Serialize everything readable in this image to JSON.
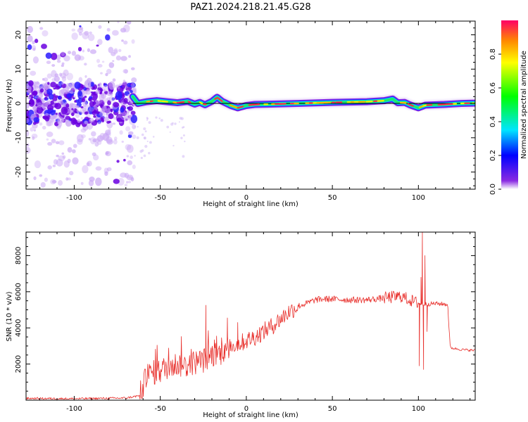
{
  "title": "PAZ1.2024.218.21.45.G28",
  "colors": {
    "snr_line": "#e8302c",
    "band_core": "#e8483c",
    "scatter": "#8a2be2"
  },
  "chart_data": [
    {
      "type": "heatmap",
      "xlabel": "Height of straight line (km)",
      "ylabel": "Frequency (Hz)",
      "xlim": [
        -128,
        133
      ],
      "ylim": [
        -25,
        24
      ],
      "x_ticks": [
        -100,
        -50,
        0,
        50,
        100
      ],
      "y_ticks": [
        -20,
        -10,
        0,
        10,
        20
      ],
      "colorbar": {
        "label": "Normalized spectral amplitude",
        "range": [
          0,
          1
        ],
        "ticks": [
          0.0,
          0.2,
          0.4,
          0.6,
          0.8
        ],
        "tick_labels": [
          "0.0",
          "0.2",
          "0.4",
          "0.6",
          "0.8"
        ],
        "colormap": "gist_rainbow"
      },
      "reference_line_hz": 0,
      "band_center": [
        [
          -66,
          2
        ],
        [
          -63,
          0
        ],
        [
          -58,
          0.5
        ],
        [
          -52,
          0.8
        ],
        [
          -46,
          0.5
        ],
        [
          -40,
          0.2
        ],
        [
          -34,
          0.6
        ],
        [
          -30,
          -0.2
        ],
        [
          -27,
          0.3
        ],
        [
          -24,
          -0.4
        ],
        [
          -20,
          0.6
        ],
        [
          -17,
          1.8
        ],
        [
          -14,
          0.6
        ],
        [
          -9,
          -0.6
        ],
        [
          -5,
          -1.3
        ],
        [
          0,
          -0.6
        ],
        [
          5,
          -0.3
        ],
        [
          15,
          -0.2
        ],
        [
          30,
          0
        ],
        [
          50,
          0.3
        ],
        [
          70,
          0.5
        ],
        [
          80,
          0.8
        ],
        [
          85,
          1.3
        ],
        [
          88,
          0.2
        ],
        [
          92,
          0.3
        ],
        [
          95,
          -0.4
        ],
        [
          100,
          -1.3
        ],
        [
          104,
          -0.5
        ],
        [
          115,
          -0.3
        ],
        [
          125,
          0
        ],
        [
          133,
          0.1
        ]
      ],
      "scatter_region_km": [
        -128,
        -65
      ]
    },
    {
      "type": "line",
      "xlabel": "Height of straight line (km)",
      "ylabel": "SNR (10 * v/v)",
      "xlim": [
        -128,
        133
      ],
      "ylim": [
        0,
        9300
      ],
      "x_ticks": [
        -100,
        -50,
        0,
        50,
        100
      ],
      "y_ticks": [
        2000,
        4000,
        6000,
        8000
      ],
      "series": [
        {
          "values": [
            [
              -128,
              100
            ],
            [
              -100,
              80
            ],
            [
              -70,
              120
            ],
            [
              -62,
              250
            ],
            [
              -58,
              1300
            ],
            [
              -55,
              1500
            ],
            [
              -50,
              1600
            ],
            [
              -45,
              1900
            ],
            [
              -40,
              2000
            ],
            [
              -35,
              1900
            ],
            [
              -30,
              2100
            ],
            [
              -25,
              2200
            ],
            [
              -20,
              2500
            ],
            [
              -15,
              2600
            ],
            [
              -10,
              3000
            ],
            [
              -5,
              3100
            ],
            [
              0,
              3300
            ],
            [
              5,
              3500
            ],
            [
              10,
              3800
            ],
            [
              15,
              4100
            ],
            [
              20,
              4500
            ],
            [
              25,
              4900
            ],
            [
              30,
              5200
            ],
            [
              35,
              5350
            ],
            [
              40,
              5550
            ],
            [
              45,
              5600
            ],
            [
              50,
              5600
            ],
            [
              60,
              5550
            ],
            [
              70,
              5550
            ],
            [
              80,
              5650
            ],
            [
              90,
              5750
            ],
            [
              96,
              5500
            ],
            [
              102,
              5300
            ],
            [
              110,
              5350
            ],
            [
              117,
              5300
            ],
            [
              118.5,
              2900
            ],
            [
              125,
              2800
            ],
            [
              133,
              2750
            ]
          ],
          "spikes": [
            [
              -23.5,
              5250
            ],
            [
              -11,
              4550
            ],
            [
              -5,
              4300
            ],
            [
              100.5,
              1900
            ],
            [
              101.5,
              6800
            ],
            [
              102.3,
              9300
            ],
            [
              103,
              1700
            ],
            [
              103.8,
              8000
            ],
            [
              105,
              3800
            ]
          ]
        }
      ]
    }
  ]
}
